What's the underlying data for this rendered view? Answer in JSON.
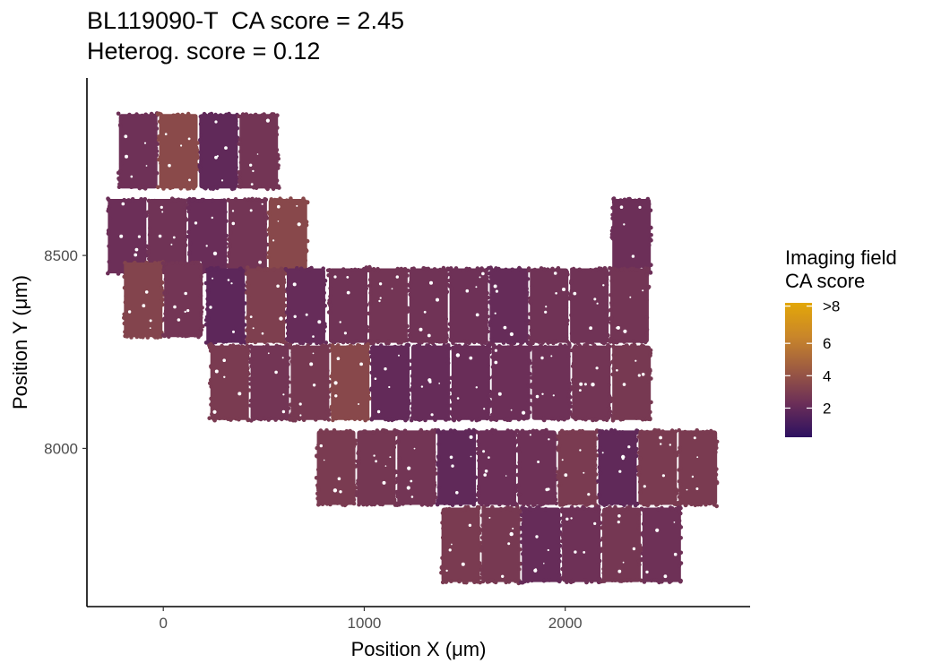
{
  "chart_data": {
    "type": "scatter",
    "title_lines": [
      "BL119090-T  CA score = 2.45",
      "Heterog. score = 0.12"
    ],
    "xlabel": "Position X (μm)",
    "ylabel": "Position Y (μm)",
    "xlim": [
      -380,
      2920
    ],
    "ylim": [
      7590,
      8960
    ],
    "x_ticks": [
      0,
      1000,
      2000
    ],
    "y_ticks": [
      8000,
      8500
    ],
    "grid": false,
    "legend": {
      "title_lines": [
        "Imaging field",
        "CA score"
      ],
      "position": "right",
      "range": [
        0.2,
        8.5
      ],
      "tick_labels": [
        {
          "value": 2,
          "label": "2"
        },
        {
          "value": 4,
          "label": "4"
        },
        {
          "value": 6,
          "label": "6"
        },
        {
          "value": 8.3,
          "label": ">8"
        }
      ],
      "colors": [
        "#2d1160",
        "#6b2e58",
        "#9c5a42",
        "#c9862a",
        "#e3a708"
      ]
    },
    "point_color_default": "#6d3a56",
    "field_size": [
      205,
      200
    ],
    "fields": [
      {
        "x": -125,
        "y": 8770,
        "score": 2.4
      },
      {
        "x": 75,
        "y": 8770,
        "score": 3.6
      },
      {
        "x": 275,
        "y": 8770,
        "score": 1.9
      },
      {
        "x": 475,
        "y": 8770,
        "score": 2.6
      },
      {
        "x": -180,
        "y": 8550,
        "score": 2.3
      },
      {
        "x": 20,
        "y": 8550,
        "score": 2.5
      },
      {
        "x": 220,
        "y": 8550,
        "score": 2.2
      },
      {
        "x": 420,
        "y": 8550,
        "score": 2.6
      },
      {
        "x": 620,
        "y": 8550,
        "score": 3.5
      },
      {
        "x": 2330,
        "y": 8550,
        "score": 2.3
      },
      {
        "x": -100,
        "y": 8385,
        "score": 3.3
      },
      {
        "x": 100,
        "y": 8385,
        "score": 2.6
      },
      {
        "x": 310,
        "y": 8370,
        "score": 1.8
      },
      {
        "x": 510,
        "y": 8370,
        "score": 3.1
      },
      {
        "x": 710,
        "y": 8370,
        "score": 2.1
      },
      {
        "x": 920,
        "y": 8370,
        "score": 2.5
      },
      {
        "x": 1120,
        "y": 8370,
        "score": 2.6
      },
      {
        "x": 1320,
        "y": 8370,
        "score": 2.5
      },
      {
        "x": 1520,
        "y": 8370,
        "score": 2.4
      },
      {
        "x": 1720,
        "y": 8370,
        "score": 2.1
      },
      {
        "x": 1920,
        "y": 8370,
        "score": 2.5
      },
      {
        "x": 2120,
        "y": 8370,
        "score": 2.5
      },
      {
        "x": 2320,
        "y": 8370,
        "score": 2.6
      },
      {
        "x": 330,
        "y": 8170,
        "score": 2.9
      },
      {
        "x": 530,
        "y": 8170,
        "score": 2.6
      },
      {
        "x": 730,
        "y": 8170,
        "score": 2.8
      },
      {
        "x": 930,
        "y": 8170,
        "score": 3.5
      },
      {
        "x": 1130,
        "y": 8170,
        "score": 2.0
      },
      {
        "x": 1330,
        "y": 8170,
        "score": 2.1
      },
      {
        "x": 1530,
        "y": 8170,
        "score": 2.2
      },
      {
        "x": 1730,
        "y": 8170,
        "score": 2.3
      },
      {
        "x": 1930,
        "y": 8170,
        "score": 2.4
      },
      {
        "x": 2130,
        "y": 8170,
        "score": 2.6
      },
      {
        "x": 2330,
        "y": 8170,
        "score": 2.8
      },
      {
        "x": 860,
        "y": 7950,
        "score": 2.9
      },
      {
        "x": 1060,
        "y": 7950,
        "score": 2.7
      },
      {
        "x": 1260,
        "y": 7950,
        "score": 2.6
      },
      {
        "x": 1460,
        "y": 7950,
        "score": 1.9
      },
      {
        "x": 1660,
        "y": 7950,
        "score": 2.3
      },
      {
        "x": 1860,
        "y": 7950,
        "score": 2.4
      },
      {
        "x": 2060,
        "y": 7950,
        "score": 2.9
      },
      {
        "x": 2260,
        "y": 7950,
        "score": 1.9
      },
      {
        "x": 2460,
        "y": 7950,
        "score": 2.9
      },
      {
        "x": 2660,
        "y": 7950,
        "score": 2.9
      },
      {
        "x": 1480,
        "y": 7750,
        "score": 2.9
      },
      {
        "x": 1680,
        "y": 7750,
        "score": 2.8
      },
      {
        "x": 1880,
        "y": 7750,
        "score": 2.1
      },
      {
        "x": 2080,
        "y": 7750,
        "score": 2.4
      },
      {
        "x": 2280,
        "y": 7750,
        "score": 2.7
      },
      {
        "x": 2480,
        "y": 7750,
        "score": 2.4
      }
    ]
  }
}
